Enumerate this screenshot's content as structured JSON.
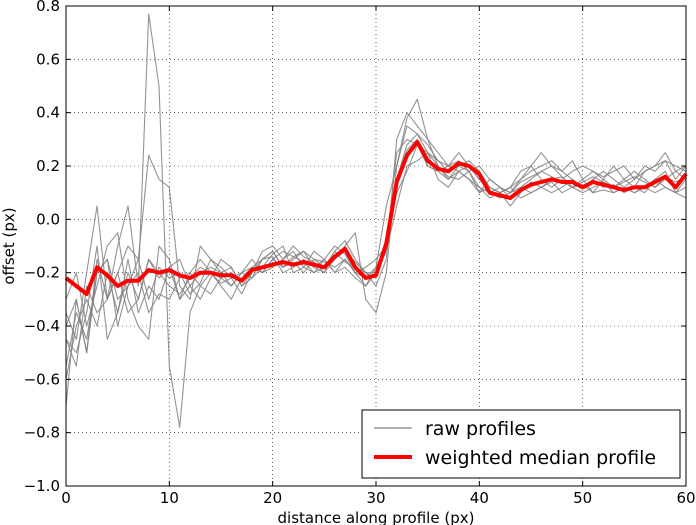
{
  "chart_data": {
    "type": "line",
    "xlabel": "distance along profile (px)",
    "ylabel": "offset (px)",
    "xlim": [
      0,
      60
    ],
    "ylim": [
      -1.0,
      0.8
    ],
    "xticks": [
      0,
      10,
      20,
      30,
      40,
      50,
      60
    ],
    "xtick_labels": [
      "0",
      "10",
      "20",
      "30",
      "40",
      "50",
      "60"
    ],
    "yticks": [
      -1.0,
      -0.8,
      -0.6,
      -0.4,
      -0.2,
      0.0,
      0.2,
      0.4,
      0.6,
      0.8
    ],
    "ytick_labels": [
      "−1.0",
      "−0.8",
      "−0.6",
      "−0.4",
      "−0.2",
      "0.0",
      "0.2",
      "0.4",
      "0.6",
      "0.8"
    ],
    "grid": true,
    "legend_position": "lower-right",
    "colors": {
      "raw": "#808080",
      "median": "#ff0000"
    },
    "x": [
      0,
      1,
      2,
      3,
      4,
      5,
      6,
      7,
      8,
      9,
      10,
      11,
      12,
      13,
      14,
      15,
      16,
      17,
      18,
      19,
      20,
      21,
      22,
      23,
      24,
      25,
      26,
      27,
      28,
      29,
      30,
      31,
      32,
      33,
      34,
      35,
      36,
      37,
      38,
      39,
      40,
      41,
      42,
      43,
      44,
      45,
      46,
      47,
      48,
      49,
      50,
      51,
      52,
      53,
      54,
      55,
      56,
      57,
      58,
      59,
      60
    ],
    "series": [
      {
        "name": "weighted median profile",
        "role": "median",
        "values": [
          -0.22,
          -0.25,
          -0.28,
          -0.18,
          -0.21,
          -0.25,
          -0.23,
          -0.23,
          -0.19,
          -0.2,
          -0.19,
          -0.21,
          -0.22,
          -0.2,
          -0.2,
          -0.21,
          -0.21,
          -0.23,
          -0.19,
          -0.18,
          -0.17,
          -0.16,
          -0.17,
          -0.16,
          -0.17,
          -0.18,
          -0.14,
          -0.11,
          -0.18,
          -0.22,
          -0.21,
          -0.09,
          0.14,
          0.24,
          0.29,
          0.22,
          0.19,
          0.18,
          0.21,
          0.2,
          0.17,
          0.1,
          0.09,
          0.08,
          0.11,
          0.13,
          0.14,
          0.15,
          0.14,
          0.14,
          0.12,
          0.14,
          0.13,
          0.12,
          0.11,
          0.12,
          0.12,
          0.14,
          0.16,
          0.12,
          0.17
        ]
      },
      {
        "name": "raw profiles",
        "role": "raw",
        "values": [
          -0.7,
          -0.3,
          -0.5,
          -0.15,
          -0.3,
          -0.1,
          0.05,
          -0.25,
          0.77,
          0.5,
          -0.55,
          -0.78,
          -0.35,
          -0.25,
          -0.2,
          -0.22,
          -0.25,
          -0.2,
          -0.18,
          -0.15,
          -0.12,
          -0.18,
          -0.15,
          -0.12,
          -0.18,
          -0.15,
          -0.1,
          -0.13,
          -0.2,
          -0.25,
          -0.2,
          -0.08,
          0.15,
          0.26,
          0.3,
          0.2,
          0.18,
          0.2,
          0.18,
          0.2,
          0.15,
          0.12,
          0.1,
          0.05,
          0.1,
          0.14,
          0.12,
          0.15,
          0.16,
          0.12,
          0.1,
          0.12,
          0.14,
          0.1,
          0.12,
          0.1,
          0.12,
          0.15,
          0.18,
          0.1,
          0.15
        ]
      },
      {
        "role": "raw",
        "values": [
          -0.35,
          -0.45,
          -0.2,
          0.05,
          -0.3,
          -0.2,
          -0.1,
          -0.15,
          0.24,
          0.15,
          0.12,
          -0.25,
          -0.3,
          -0.1,
          -0.15,
          -0.2,
          -0.18,
          -0.25,
          -0.2,
          -0.12,
          -0.1,
          -0.15,
          -0.1,
          -0.14,
          -0.16,
          -0.2,
          -0.12,
          -0.08,
          -0.15,
          -0.2,
          -0.25,
          -0.15,
          0.3,
          0.4,
          0.35,
          0.3,
          0.25,
          0.2,
          0.22,
          0.18,
          0.1,
          0.15,
          0.12,
          0.1,
          0.15,
          0.2,
          0.25,
          0.2,
          0.18,
          0.22,
          0.15,
          0.1,
          0.15,
          0.2,
          0.15,
          0.12,
          0.18,
          0.2,
          0.22,
          0.15,
          0.2
        ]
      },
      {
        "role": "raw",
        "values": [
          -0.55,
          -0.35,
          -0.45,
          -0.2,
          -0.15,
          -0.3,
          -0.25,
          -0.2,
          -0.35,
          -0.28,
          -0.3,
          -0.22,
          -0.2,
          -0.25,
          -0.28,
          -0.22,
          -0.2,
          -0.23,
          -0.18,
          -0.2,
          -0.15,
          -0.18,
          -0.16,
          -0.2,
          -0.15,
          -0.16,
          -0.18,
          -0.15,
          -0.2,
          -0.18,
          -0.15,
          -0.1,
          0.1,
          0.18,
          0.28,
          0.25,
          0.15,
          0.12,
          0.18,
          0.15,
          0.12,
          0.1,
          0.08,
          0.1,
          0.12,
          0.1,
          0.12,
          0.14,
          0.1,
          0.12,
          0.13,
          0.1,
          0.11,
          0.1,
          0.12,
          0.1,
          0.12,
          0.1,
          0.12,
          0.1,
          0.12
        ]
      },
      {
        "role": "raw",
        "values": [
          -0.45,
          -0.5,
          -0.35,
          -0.1,
          -0.45,
          -0.35,
          -0.2,
          -0.3,
          -0.15,
          -0.2,
          -0.25,
          -0.28,
          -0.22,
          -0.18,
          -0.2,
          -0.24,
          -0.22,
          -0.2,
          -0.22,
          -0.15,
          -0.14,
          -0.2,
          -0.18,
          -0.15,
          -0.18,
          -0.2,
          -0.15,
          -0.12,
          -0.16,
          -0.2,
          -0.2,
          -0.12,
          0.05,
          0.2,
          0.22,
          0.25,
          0.2,
          0.15,
          0.2,
          0.22,
          0.18,
          0.12,
          0.1,
          0.12,
          0.08,
          0.1,
          0.12,
          0.1,
          0.12,
          0.15,
          0.12,
          0.15,
          0.12,
          0.13,
          0.1,
          0.12,
          0.1,
          0.15,
          0.12,
          0.1,
          0.08
        ]
      },
      {
        "role": "raw",
        "values": [
          -0.6,
          -0.4,
          -0.3,
          -0.4,
          -0.2,
          -0.35,
          -0.15,
          -0.35,
          -0.25,
          -0.3,
          -0.18,
          -0.15,
          -0.25,
          -0.3,
          -0.22,
          -0.15,
          -0.18,
          -0.25,
          -0.22,
          -0.18,
          -0.13,
          -0.1,
          -0.2,
          -0.18,
          -0.12,
          -0.15,
          -0.2,
          -0.18,
          -0.22,
          -0.25,
          -0.18,
          0.05,
          0.2,
          0.38,
          0.45,
          0.3,
          0.2,
          0.16,
          0.15,
          0.18,
          0.2,
          0.15,
          0.12,
          0.08,
          0.12,
          0.15,
          0.18,
          0.2,
          0.16,
          0.12,
          0.15,
          0.18,
          0.16,
          0.18,
          0.2,
          0.15,
          0.2,
          0.18,
          0.22,
          0.2,
          0.18
        ]
      },
      {
        "role": "raw",
        "values": [
          -0.3,
          -0.2,
          -0.4,
          -0.25,
          -0.1,
          -0.05,
          -0.3,
          -0.4,
          -0.45,
          -0.1,
          -0.15,
          -0.3,
          -0.2,
          -0.15,
          -0.2,
          -0.25,
          -0.3,
          -0.22,
          -0.18,
          -0.2,
          -0.15,
          -0.12,
          -0.14,
          -0.16,
          -0.2,
          -0.18,
          -0.15,
          -0.1,
          -0.05,
          -0.3,
          -0.35,
          -0.2,
          0.2,
          0.35,
          0.32,
          0.25,
          0.22,
          0.18,
          0.2,
          0.18,
          0.12,
          0.08,
          0.1,
          0.12,
          0.15,
          0.18,
          0.2,
          0.22,
          0.18,
          0.15,
          0.12,
          0.15,
          0.18,
          0.15,
          0.12,
          0.15,
          0.18,
          0.2,
          0.25,
          0.18,
          0.2
        ]
      },
      {
        "role": "raw",
        "values": [
          -0.45,
          -0.55,
          -0.25,
          -0.35,
          -0.3,
          -0.2,
          -0.35,
          -0.3,
          -0.15,
          -0.22,
          -0.18,
          -0.3,
          -0.25,
          -0.2,
          -0.18,
          -0.2,
          -0.25,
          -0.2,
          -0.15,
          -0.2,
          -0.18,
          -0.15,
          -0.12,
          -0.18,
          -0.2,
          -0.15,
          -0.2,
          -0.15,
          -0.2,
          -0.22,
          -0.18,
          -0.1,
          0.25,
          0.3,
          0.28,
          0.2,
          0.18,
          0.15,
          0.18,
          0.15,
          0.1,
          0.12,
          0.1,
          0.12,
          0.18,
          0.2,
          0.15,
          0.12,
          0.15,
          0.18,
          0.2,
          0.18,
          0.15,
          0.12,
          0.15,
          0.18,
          0.15,
          0.12,
          0.15,
          0.18,
          0.15
        ]
      },
      {
        "role": "raw",
        "values": [
          -0.4,
          -0.3,
          -0.5,
          -0.2,
          -0.15,
          -0.4,
          -0.25,
          -0.15,
          -0.3,
          -0.18,
          -0.22,
          -0.2,
          -0.28,
          -0.24,
          -0.15,
          -0.18,
          -0.22,
          -0.28,
          -0.2,
          -0.15,
          -0.12,
          -0.18,
          -0.14,
          -0.12,
          -0.15,
          -0.18,
          -0.12,
          -0.16,
          -0.18,
          -0.2,
          -0.22,
          -0.1,
          0.15,
          0.28,
          0.32,
          0.28,
          0.22,
          0.2,
          0.25,
          0.2,
          0.15,
          0.1,
          0.12,
          0.1,
          0.14,
          0.16,
          0.18,
          0.16,
          0.14,
          0.12,
          0.14,
          0.16,
          0.14,
          0.12,
          0.14,
          0.16,
          0.14,
          0.12,
          0.16,
          0.14,
          0.16
        ]
      }
    ],
    "legend": [
      {
        "label": "raw profiles",
        "style": "thin-gray"
      },
      {
        "label": "weighted median profile",
        "style": "thick-red"
      }
    ]
  }
}
